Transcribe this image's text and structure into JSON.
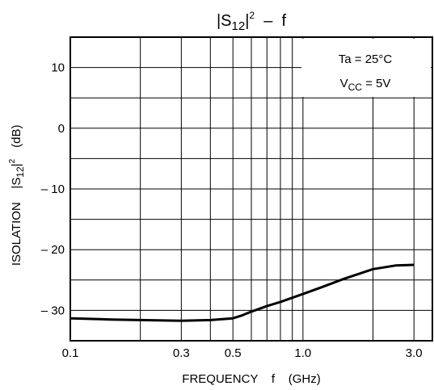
{
  "chart_data": {
    "type": "line",
    "title": {
      "base": "|S",
      "sub": "12",
      "close": "|",
      "sup": "2",
      "tail": "  –  f"
    },
    "xlabel": "FREQUENCY    f    (GHz)",
    "ylabel": {
      "base": "ISOLATION    |S",
      "sub": "12",
      "close": "|",
      "sup": "2",
      "unit": "(dB)"
    },
    "x_scale": "log",
    "xlim": [
      0.1,
      3.6
    ],
    "ylim": [
      -35,
      15
    ],
    "x_ticks": [
      {
        "value": 0.1,
        "label": "0.1"
      },
      {
        "value": 0.3,
        "label": "0.3"
      },
      {
        "value": 0.5,
        "label": "0.5"
      },
      {
        "value": 1.0,
        "label": "1.0"
      },
      {
        "value": 3.0,
        "label": "3.0"
      }
    ],
    "x_gridlines": [
      0.2,
      0.3,
      0.4,
      0.5,
      0.6,
      0.7,
      0.8,
      0.9,
      1.0,
      2.0,
      3.0
    ],
    "y_ticks": [
      {
        "value": 10,
        "label": "10"
      },
      {
        "value": 0,
        "label": "0"
      },
      {
        "value": -10,
        "label": "– 10"
      },
      {
        "value": -20,
        "label": "– 20"
      },
      {
        "value": -30,
        "label": "– 30"
      }
    ],
    "y_gridlines": [
      15,
      10,
      5,
      0,
      -5,
      -10,
      -15,
      -20,
      -25,
      -30,
      -35
    ],
    "grid": true,
    "annotations": [
      {
        "text": "Ta = 25°C"
      },
      {
        "base": "V",
        "sub": "CC",
        "text": " = 5V"
      }
    ],
    "series": [
      {
        "x": [
          0.1,
          0.15,
          0.2,
          0.3,
          0.4,
          0.5,
          0.55,
          0.6,
          0.7,
          0.8,
          1.0,
          1.2,
          1.5,
          2.0,
          2.5,
          3.0
        ],
        "y": [
          -31.3,
          -31.5,
          -31.6,
          -31.7,
          -31.6,
          -31.3,
          -30.8,
          -30.2,
          -29.3,
          -28.6,
          -27.3,
          -26.2,
          -24.8,
          -23.2,
          -22.6,
          -22.5
        ]
      }
    ]
  }
}
